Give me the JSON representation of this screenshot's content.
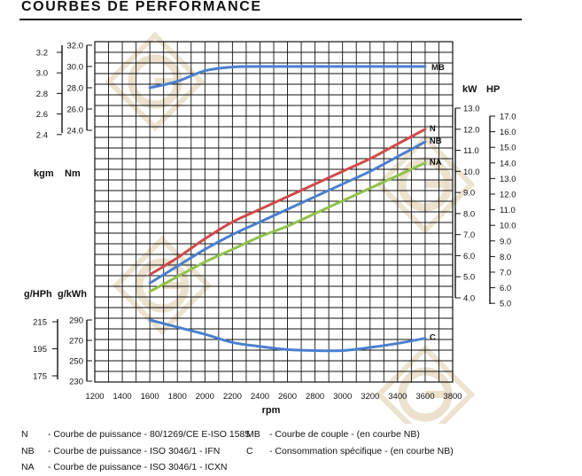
{
  "page": {
    "title": "COURBES DE PERFORMANCE"
  },
  "colors": {
    "N": "#d04a4a",
    "NB": "#4a7fd0",
    "NA": "#8ec24a",
    "MB": "#4a7fd0",
    "C": "#4a7fd0",
    "grid": "#111111",
    "watermark": "#e7dcc4"
  },
  "chart_data": {
    "type": "line",
    "x": [
      1600,
      1800,
      2000,
      2200,
      2400,
      2600,
      2800,
      3000,
      3200,
      3400,
      3600
    ],
    "xlabel": "rpm",
    "xlim": [
      1200,
      3800
    ],
    "xticks": [
      "1200",
      "1400",
      "1600",
      "1800",
      "2000",
      "2200",
      "2400",
      "2600",
      "2800",
      "3000",
      "3200",
      "3400",
      "3600",
      "3800"
    ],
    "grid": true,
    "torque_axis": {
      "label_kgm": "kgm",
      "label_nm": "Nm",
      "nm_range": [
        24.0,
        32.0
      ],
      "nm_ticks": [
        "32.0",
        "30.0",
        "28.0",
        "26.0",
        "24.0"
      ],
      "kgm_ticks": [
        "3.2",
        "3.0",
        "2.8",
        "2.6",
        "2.4"
      ]
    },
    "power_axis": {
      "label_kw": "kW",
      "label_hp": "HP",
      "kw_range": [
        4.0,
        13.0
      ],
      "kw_ticks": [
        "13.0",
        "12.0",
        "11.0",
        "10.0",
        "9.0",
        "8.0",
        "7.0",
        "6.0",
        "5.0",
        "4.0"
      ],
      "hp_ticks": [
        "17.0",
        "16.0",
        "15.0",
        "14.0",
        "13.0",
        "12.0",
        "11.0",
        "10.0",
        "9.0",
        "8.0",
        "7.0",
        "6.0",
        "5.0"
      ]
    },
    "consumption_axis": {
      "label_ghph": "g/HPh",
      "label_gkwh": "g/kWh",
      "gkwh_range": [
        230,
        290
      ],
      "gkwh_ticks": [
        "290",
        "270",
        "250",
        "230"
      ],
      "ghph_ticks": [
        "215",
        "195",
        "175"
      ]
    },
    "series": [
      {
        "name": "MB",
        "axis": "torque",
        "values": [
          28.0,
          28.6,
          29.6,
          29.95,
          30.0,
          30.0,
          30.0,
          30.0,
          30.0,
          30.0,
          30.0
        ]
      },
      {
        "name": "N",
        "axis": "power",
        "values": [
          5.1,
          5.9,
          6.8,
          7.6,
          8.2,
          8.8,
          9.4,
          10.0,
          10.6,
          11.3,
          12.0
        ]
      },
      {
        "name": "NB",
        "axis": "power",
        "values": [
          4.7,
          5.5,
          6.3,
          7.0,
          7.6,
          8.2,
          8.8,
          9.4,
          10.0,
          10.7,
          11.4
        ]
      },
      {
        "name": "NA",
        "axis": "power",
        "values": [
          4.3,
          5.0,
          5.7,
          6.3,
          6.9,
          7.4,
          8.0,
          8.6,
          9.2,
          9.8,
          10.4
        ]
      },
      {
        "name": "C",
        "axis": "consumption",
        "values": [
          290,
          283,
          276,
          268,
          264,
          261,
          260,
          260,
          263,
          267,
          272
        ]
      }
    ]
  },
  "legend": {
    "left": [
      {
        "code": "N",
        "text": "- Courbe de puissance - 80/1269/CE E-ISO 1585"
      },
      {
        "code": "NB",
        "text": "- Courbe de puissance - ISO 3046/1 - IFN"
      },
      {
        "code": "NA",
        "text": "- Courbe de puissance - ISO 3046/1 - ICXN"
      }
    ],
    "right": [
      {
        "code": "MB",
        "text": "- Courbe de couple - (en courbe NB)"
      },
      {
        "code": "C",
        "text": "- Consommation spécifique - (en courbe NB)"
      }
    ]
  }
}
